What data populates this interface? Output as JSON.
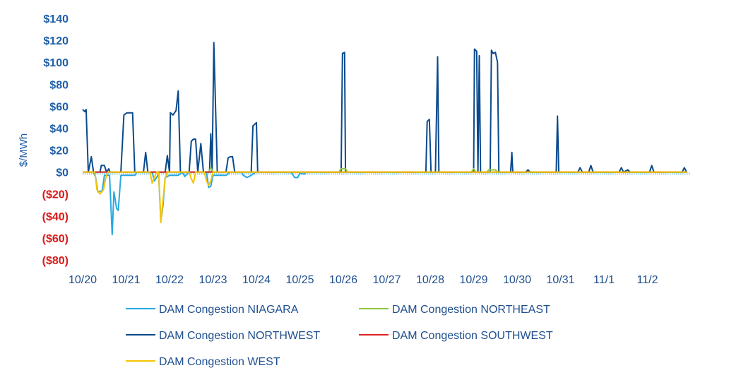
{
  "chart_data": {
    "type": "line",
    "title": "",
    "xlabel": "",
    "ylabel": "$/MWh",
    "ylim": [
      -80,
      140
    ],
    "xlim": [
      0,
      14
    ],
    "yticks": [
      140,
      120,
      100,
      80,
      60,
      40,
      20,
      0,
      -20,
      -40,
      -60,
      -80
    ],
    "ytick_labels": [
      "$140",
      "$120",
      "$100",
      "$80",
      "$60",
      "$40",
      "$20",
      "$0",
      "($20)",
      "($40)",
      "($60)",
      "($80)"
    ],
    "ytick_colors": {
      "positive": "#1f5fa8",
      "negative": "#d81b1b"
    },
    "x_tick_positions": [
      0,
      1,
      2,
      3,
      4,
      5,
      6,
      7,
      8,
      9,
      10,
      11,
      12,
      13
    ],
    "x_tick_labels": [
      "10/20",
      "10/21",
      "10/22",
      "10/23",
      "10/24",
      "10/25",
      "10/26",
      "10/27",
      "10/28",
      "10/29",
      "10/30",
      "10/31",
      "11/1",
      "11/2"
    ],
    "legend_position": "bottom",
    "series": [
      {
        "name": "DAM Congestion NIAGARA",
        "color": "#29a8e0",
        "points": [
          [
            0,
            0
          ],
          [
            0.25,
            0
          ],
          [
            0.3,
            -5
          ],
          [
            0.35,
            -18
          ],
          [
            0.45,
            -17
          ],
          [
            0.5,
            -3
          ],
          [
            0.62,
            -3
          ],
          [
            0.68,
            -57
          ],
          [
            0.72,
            -18
          ],
          [
            0.78,
            -33
          ],
          [
            0.82,
            -35
          ],
          [
            0.88,
            -3
          ],
          [
            1.2,
            -3
          ],
          [
            1.25,
            0
          ],
          [
            1.6,
            0
          ],
          [
            1.65,
            -8
          ],
          [
            1.75,
            -2
          ],
          [
            1.8,
            -45
          ],
          [
            1.85,
            -30
          ],
          [
            1.9,
            -5
          ],
          [
            2,
            -3
          ],
          [
            2.2,
            -3
          ],
          [
            2.3,
            0
          ],
          [
            2.35,
            -4
          ],
          [
            2.45,
            0
          ],
          [
            2.85,
            0
          ],
          [
            2.9,
            -14
          ],
          [
            2.95,
            -13
          ],
          [
            3.0,
            -3
          ],
          [
            3.3,
            -3
          ],
          [
            3.4,
            0
          ],
          [
            3.65,
            0
          ],
          [
            3.7,
            -3
          ],
          [
            3.78,
            -5
          ],
          [
            3.88,
            -3
          ],
          [
            3.98,
            0
          ],
          [
            4.8,
            0
          ],
          [
            4.88,
            -5
          ],
          [
            4.95,
            -5
          ],
          [
            5.0,
            -1
          ],
          [
            5.1,
            -2
          ],
          [
            5.15,
            0
          ],
          [
            13.9,
            0
          ]
        ]
      },
      {
        "name": "DAM Congestion NORTHEAST",
        "color": "#8cc63f",
        "points": [
          [
            0,
            0
          ],
          [
            2.9,
            0
          ],
          [
            2.95,
            4
          ],
          [
            3.0,
            0
          ],
          [
            5.9,
            0
          ],
          [
            5.95,
            3
          ],
          [
            6.05,
            3
          ],
          [
            6.1,
            0
          ],
          [
            8.95,
            0
          ],
          [
            9.0,
            3
          ],
          [
            9.05,
            0
          ],
          [
            9.3,
            0
          ],
          [
            9.35,
            2
          ],
          [
            9.5,
            2
          ],
          [
            9.55,
            0
          ],
          [
            13.9,
            0
          ]
        ]
      },
      {
        "name": "DAM Congestion NORTHWEST",
        "color": "#0a4a8c",
        "points": [
          [
            0,
            57
          ],
          [
            0.05,
            55
          ],
          [
            0.08,
            57
          ],
          [
            0.13,
            0
          ],
          [
            0.2,
            14
          ],
          [
            0.25,
            0
          ],
          [
            0.4,
            0
          ],
          [
            0.43,
            6
          ],
          [
            0.5,
            6
          ],
          [
            0.55,
            0
          ],
          [
            0.6,
            3
          ],
          [
            0.63,
            0
          ],
          [
            0.88,
            0
          ],
          [
            0.95,
            52
          ],
          [
            1.02,
            54
          ],
          [
            1.15,
            54
          ],
          [
            1.2,
            0
          ],
          [
            1.4,
            0
          ],
          [
            1.45,
            18
          ],
          [
            1.5,
            0
          ],
          [
            1.9,
            0
          ],
          [
            1.95,
            15
          ],
          [
            2.0,
            0
          ],
          [
            2.02,
            54
          ],
          [
            2.08,
            52
          ],
          [
            2.15,
            56
          ],
          [
            2.2,
            74
          ],
          [
            2.25,
            0
          ],
          [
            2.45,
            0
          ],
          [
            2.5,
            28
          ],
          [
            2.55,
            30
          ],
          [
            2.6,
            30
          ],
          [
            2.65,
            0
          ],
          [
            2.72,
            26
          ],
          [
            2.78,
            0
          ],
          [
            2.92,
            0
          ],
          [
            2.95,
            35
          ],
          [
            2.98,
            0
          ],
          [
            3.02,
            118
          ],
          [
            3.1,
            0
          ],
          [
            3.3,
            0
          ],
          [
            3.35,
            13
          ],
          [
            3.4,
            14
          ],
          [
            3.45,
            14
          ],
          [
            3.5,
            0
          ],
          [
            3.88,
            0
          ],
          [
            3.92,
            42
          ],
          [
            4.0,
            45
          ],
          [
            4.03,
            0
          ],
          [
            5.95,
            0
          ],
          [
            5.98,
            108
          ],
          [
            6.03,
            109
          ],
          [
            6.05,
            0
          ],
          [
            7.9,
            0
          ],
          [
            7.93,
            46
          ],
          [
            7.98,
            48
          ],
          [
            8.02,
            0
          ],
          [
            8.12,
            0
          ],
          [
            8.17,
            105
          ],
          [
            8.2,
            0
          ],
          [
            9.0,
            0
          ],
          [
            9.02,
            112
          ],
          [
            9.07,
            110
          ],
          [
            9.1,
            0
          ],
          [
            9.13,
            106
          ],
          [
            9.16,
            0
          ],
          [
            9.38,
            0
          ],
          [
            9.41,
            111
          ],
          [
            9.45,
            108
          ],
          [
            9.5,
            109
          ],
          [
            9.55,
            100
          ],
          [
            9.58,
            0
          ],
          [
            9.85,
            0
          ],
          [
            9.88,
            18
          ],
          [
            9.9,
            0
          ],
          [
            10.2,
            0
          ],
          [
            10.25,
            2
          ],
          [
            10.3,
            0
          ],
          [
            10.9,
            0
          ],
          [
            10.93,
            51
          ],
          [
            10.96,
            0
          ],
          [
            11.4,
            0
          ],
          [
            11.45,
            4
          ],
          [
            11.5,
            0
          ],
          [
            11.65,
            0
          ],
          [
            11.7,
            6
          ],
          [
            11.75,
            0
          ],
          [
            12.35,
            0
          ],
          [
            12.4,
            4
          ],
          [
            12.45,
            0
          ],
          [
            12.55,
            2
          ],
          [
            12.6,
            0
          ],
          [
            13.05,
            0
          ],
          [
            13.1,
            6
          ],
          [
            13.15,
            0
          ],
          [
            13.8,
            0
          ],
          [
            13.85,
            4
          ],
          [
            13.9,
            0
          ]
        ]
      },
      {
        "name": "DAM Congestion SOUTHWEST",
        "color": "#e02020",
        "points": [
          [
            0,
            0
          ],
          [
            13.9,
            0
          ]
        ]
      },
      {
        "name": "DAM Congestion WEST",
        "color": "#f5c400",
        "points": [
          [
            0,
            0
          ],
          [
            0.28,
            0
          ],
          [
            0.33,
            -16
          ],
          [
            0.4,
            -20
          ],
          [
            0.48,
            -16
          ],
          [
            0.53,
            -6
          ],
          [
            0.58,
            0
          ],
          [
            1.55,
            0
          ],
          [
            1.6,
            -10
          ],
          [
            1.65,
            -5
          ],
          [
            1.7,
            0
          ],
          [
            1.75,
            0
          ],
          [
            1.8,
            -46
          ],
          [
            1.85,
            -25
          ],
          [
            1.9,
            -6
          ],
          [
            1.95,
            0
          ],
          [
            2.45,
            0
          ],
          [
            2.5,
            -6
          ],
          [
            2.55,
            -10
          ],
          [
            2.6,
            0
          ],
          [
            2.8,
            0
          ],
          [
            2.85,
            -8
          ],
          [
            2.9,
            -12
          ],
          [
            2.95,
            -8
          ],
          [
            3.0,
            0
          ],
          [
            13.9,
            0
          ]
        ]
      }
    ]
  }
}
